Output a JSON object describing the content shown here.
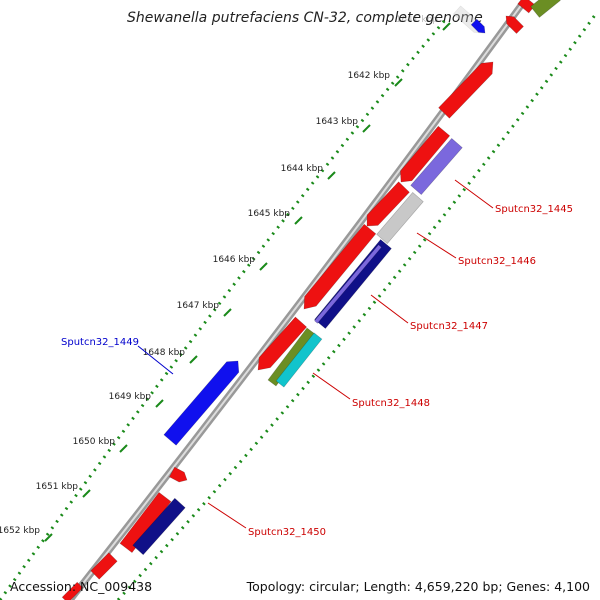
{
  "title": "Shewanella putrefaciens CN-32, complete genome",
  "accession": "Accession: NC_009438",
  "summary": "Topology: circular; Length: 4,659,220 bp; Genes: 4,100",
  "ticks": [
    {
      "label": "1641 kbp",
      "faded": true
    },
    {
      "label": "1642 kbp"
    },
    {
      "label": "1643 kbp"
    },
    {
      "label": "1644 kbp"
    },
    {
      "label": "1645 kbp"
    },
    {
      "label": "1646 kbp"
    },
    {
      "label": "1647 kbp"
    },
    {
      "label": "1648 kbp"
    },
    {
      "label": "1649 kbp"
    },
    {
      "label": "1650 kbp"
    },
    {
      "label": "1651 kbp"
    },
    {
      "label": "1652 kbp"
    }
  ],
  "colors": {
    "red": "#ee1111",
    "blue": "#1010ee",
    "lavender": "#7b68dd",
    "navy": "#101088",
    "olive": "#6b8e23",
    "cyan": "#11c4cc",
    "gray": "#c8c8c8",
    "dots": "#1a8a1a",
    "backbone": "#888888"
  },
  "labels": [
    {
      "id": "Sputcn32_1445",
      "text": "Sputcn32_1445",
      "color": "#cc0000"
    },
    {
      "id": "Sputcn32_1446",
      "text": "Sputcn32_1446",
      "color": "#cc0000"
    },
    {
      "id": "Sputcn32_1447",
      "text": "Sputcn32_1447",
      "color": "#cc0000"
    },
    {
      "id": "Sputcn32_1448",
      "text": "Sputcn32_1448",
      "color": "#cc0000"
    },
    {
      "id": "Sputcn32_1449",
      "text": "Sputcn32_1449",
      "color": "#0000cc"
    },
    {
      "id": "Sputcn32_1450",
      "text": "Sputcn32_1450",
      "color": "#cc0000"
    }
  ]
}
